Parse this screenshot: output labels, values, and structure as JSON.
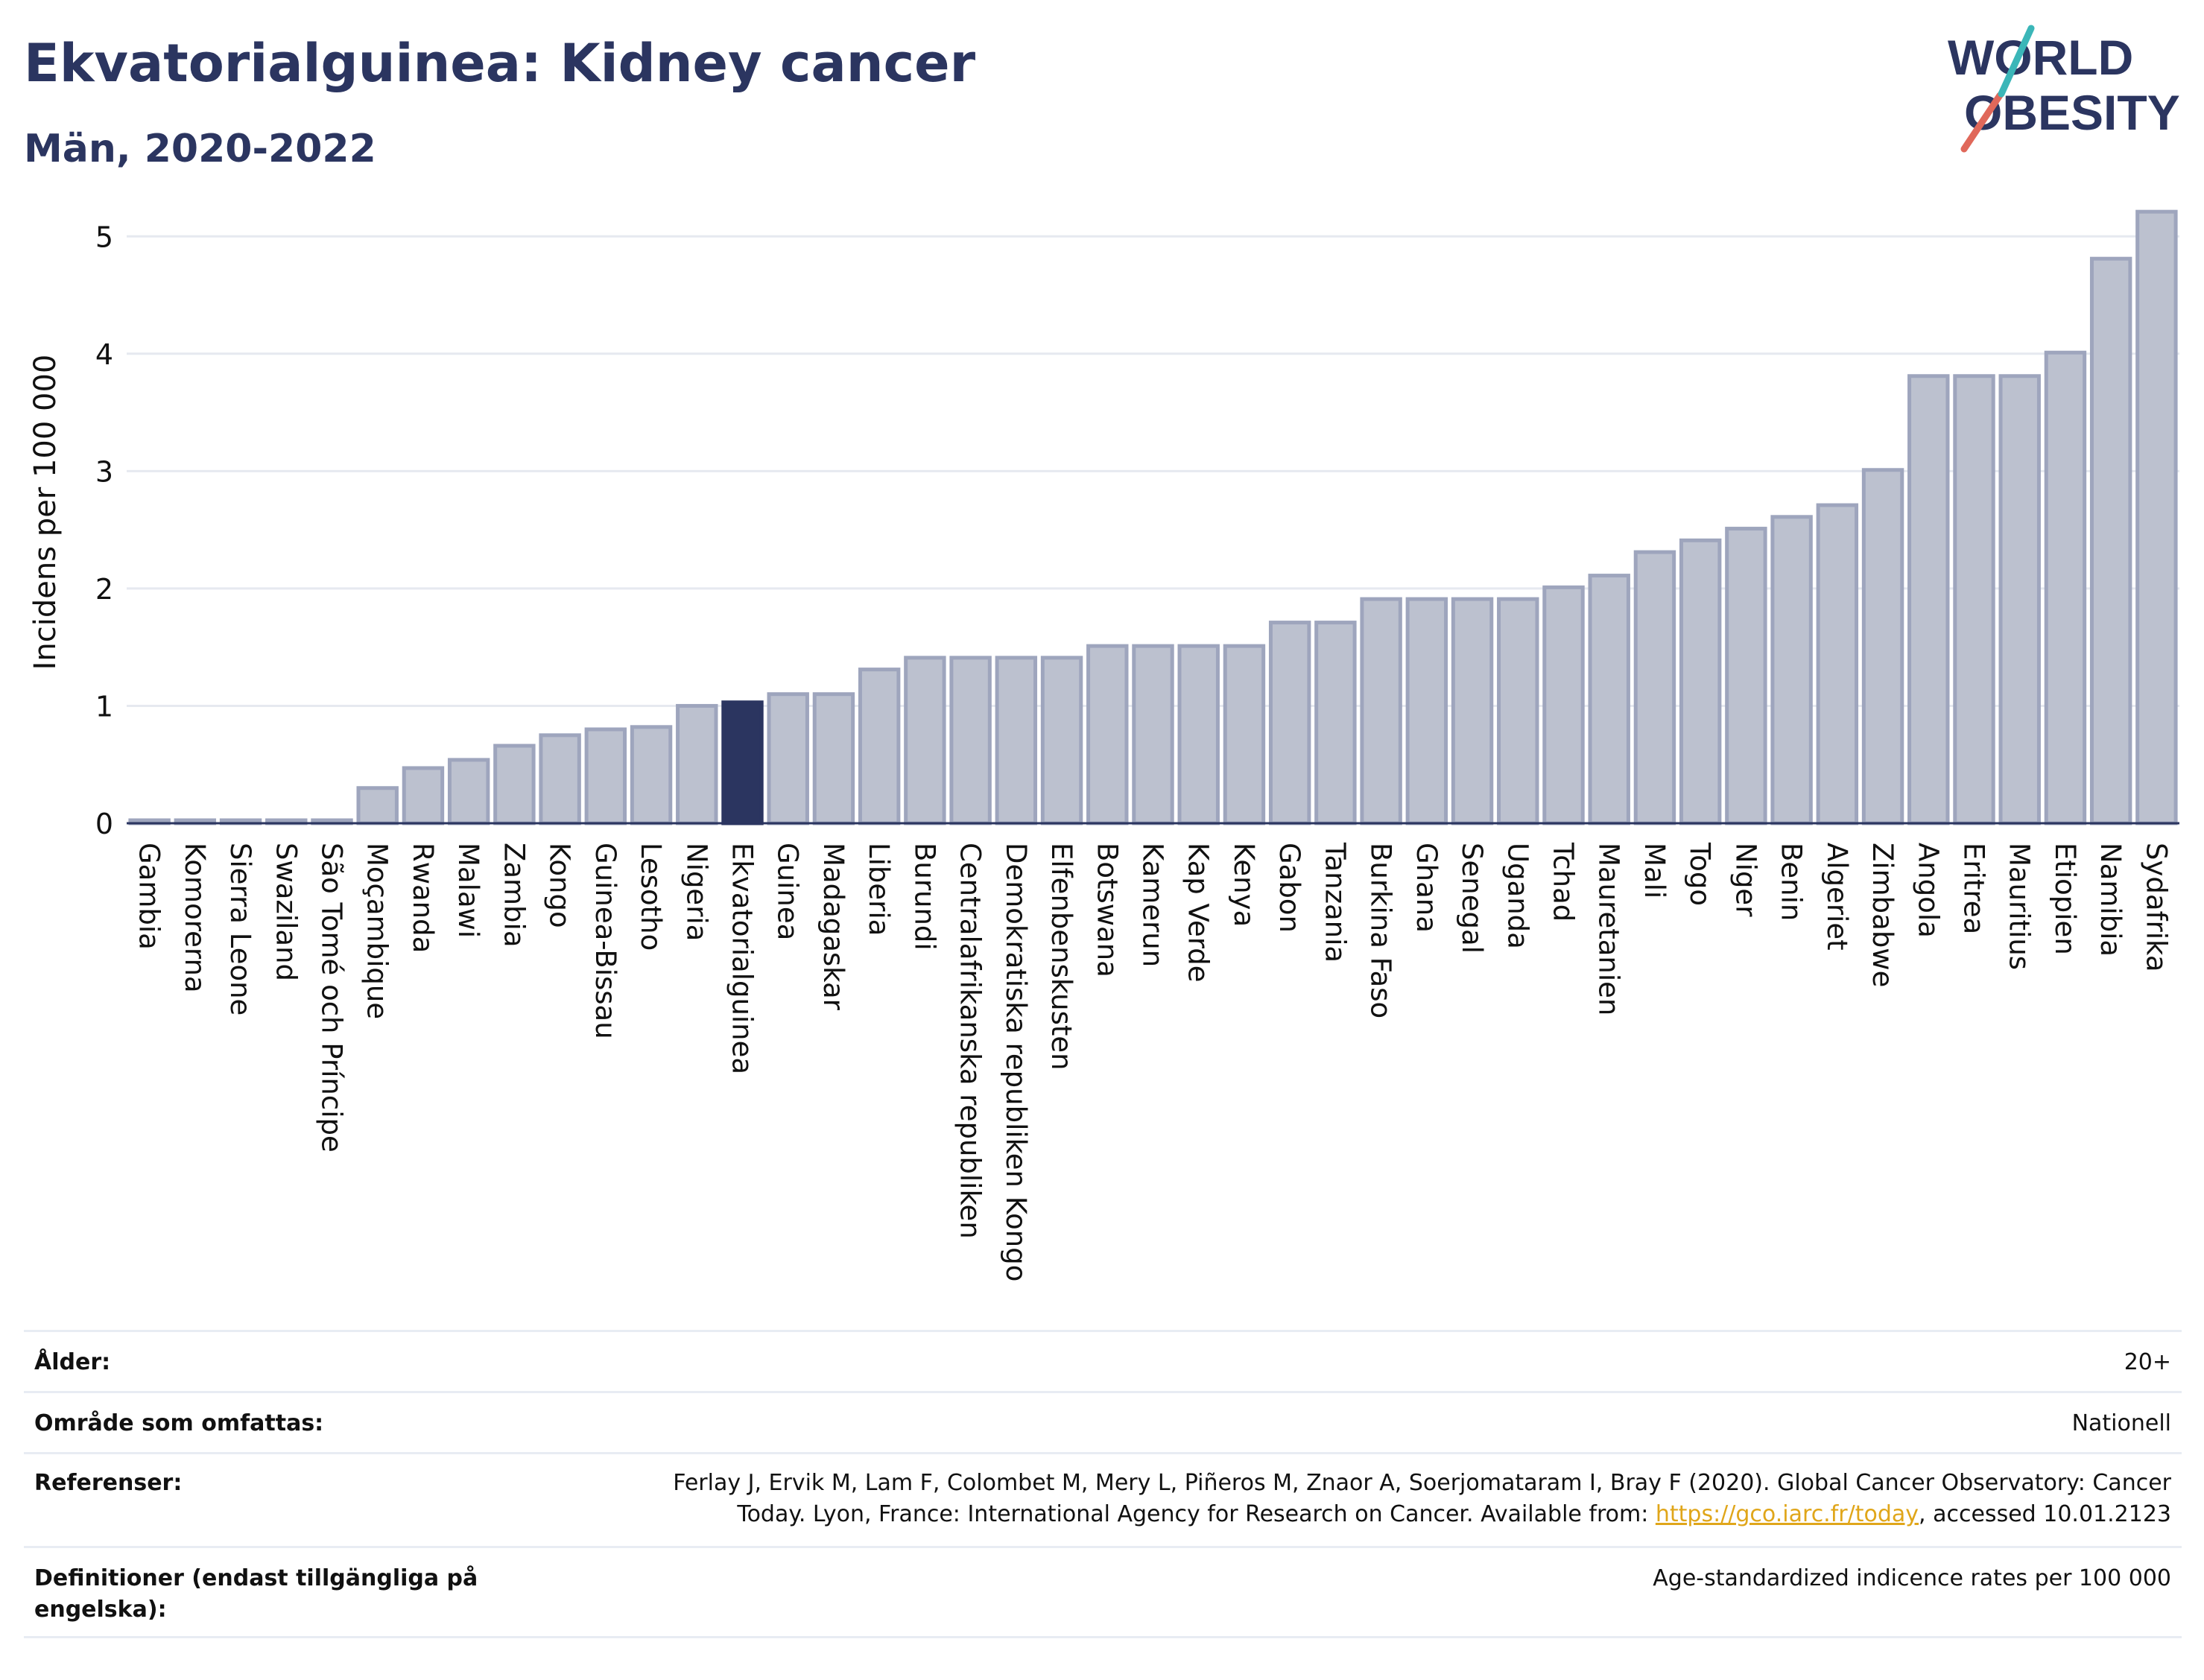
{
  "header": {
    "title": "Ekvatorialguinea: Kidney cancer",
    "subtitle": "Män, 2020-2022",
    "logo_line1": "WORLD",
    "logo_line2": "OBESITY"
  },
  "colors": {
    "bar_default": "#bcc1cf",
    "bar_default_edge": "#9ea5bd",
    "bar_highlight": "#2b3560",
    "title": "#2b3560",
    "grid": "#e6e9f0",
    "logo_teal": "#3bb6b8",
    "logo_coral": "#e0685a"
  },
  "chart_data": {
    "type": "bar",
    "ylabel": "Incidens per 100 000",
    "xlabel": "",
    "ylim": [
      0,
      5.3
    ],
    "yticks": [
      0,
      1,
      2,
      3,
      4,
      5
    ],
    "grid": true,
    "highlight": "Ekvatorialguinea",
    "categories": [
      "Gambia",
      "Komorerna",
      "Sierra Leone",
      "Swaziland",
      "São Tomé och Príncipe",
      "Moçambique",
      "Rwanda",
      "Malawi",
      "Zambia",
      "Kongo",
      "Guinea-Bissau",
      "Lesotho",
      "Nigeria",
      "Ekvatorialguinea",
      "Guinea",
      "Madagaskar",
      "Liberia",
      "Burundi",
      "Centralafrikanska republiken",
      "Demokratiska republiken Kongo",
      "Elfenbenskusten",
      "Botswana",
      "Kamerun",
      "Kap Verde",
      "Kenya",
      "Gabon",
      "Tanzania",
      "Burkina Faso",
      "Ghana",
      "Senegal",
      "Uganda",
      "Tchad",
      "Mauretanien",
      "Mali",
      "Togo",
      "Niger",
      "Benin",
      "Algeriet",
      "Zimbabwe",
      "Angola",
      "Eritrea",
      "Mauritius",
      "Etiopien",
      "Namibia",
      "Sydafrika"
    ],
    "values": [
      0.02,
      0.02,
      0.02,
      0.02,
      0.02,
      0.3,
      0.47,
      0.54,
      0.66,
      0.75,
      0.8,
      0.82,
      1.0,
      1.03,
      1.1,
      1.1,
      1.31,
      1.41,
      1.41,
      1.41,
      1.41,
      1.51,
      1.51,
      1.51,
      1.51,
      1.71,
      1.71,
      1.91,
      1.91,
      1.91,
      1.91,
      2.01,
      2.11,
      2.31,
      2.41,
      2.51,
      2.61,
      2.71,
      3.01,
      3.81,
      3.81,
      3.81,
      4.01,
      4.81,
      5.21
    ]
  },
  "footer": {
    "age_label": "Ålder:",
    "age_value": "20+",
    "area_label": "Område som omfattas:",
    "area_value": "Nationell",
    "ref_label": "Referenser:",
    "ref_line1": "Ferlay J, Ervik M, Lam F, Colombet M, Mery L, Piñeros M, Znaor A, Soerjomataram I, Bray F (2020). Global Cancer Observatory: Cancer",
    "ref_line2_pre": "Today. Lyon, France: International Agency for Research on Cancer. Available from: ",
    "ref_link": "https://gco.iarc.fr/today",
    "ref_line2_post": ", accessed 10.01.2123",
    "def_label": "Definitioner (endast tillgängliga på engelska):",
    "def_value": "Age-standardized indicence rates per 100 000"
  }
}
